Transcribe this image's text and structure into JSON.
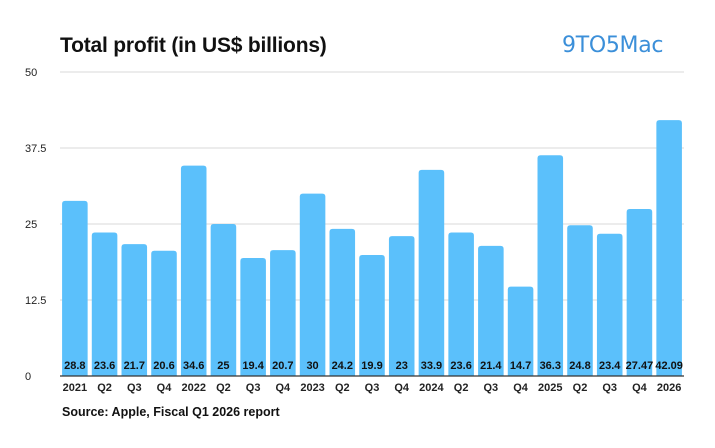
{
  "header": {
    "title": "Total profit (in US$ billions)",
    "logo": "9TO5Mac"
  },
  "footer": {
    "source": "Source: Apple, Fiscal Q1 2026 report"
  },
  "colors": {
    "bar": "#5bc0fb",
    "grid": "#d9d9d9",
    "axis": "#333333",
    "logo": "#3b8fd9"
  },
  "chart_data": {
    "type": "bar",
    "title": "Total profit (in US$ billions)",
    "xlabel": "",
    "ylabel": "",
    "ylim": [
      0,
      50
    ],
    "yticks": [
      0,
      12.5,
      25,
      37.5,
      50
    ],
    "ytick_labels": [
      "0",
      "12.5",
      "25",
      "37.5",
      "50"
    ],
    "grid": true,
    "categories": [
      "2021",
      "Q2",
      "Q3",
      "Q4",
      "2022",
      "Q2",
      "Q3",
      "Q4",
      "2023",
      "Q2",
      "Q3",
      "Q4",
      "2024",
      "Q2",
      "Q3",
      "Q4",
      "2025",
      "Q2",
      "Q3",
      "Q4",
      "2026"
    ],
    "values": [
      28.8,
      23.6,
      21.7,
      20.6,
      34.6,
      25,
      19.4,
      20.7,
      30,
      24.2,
      19.9,
      23,
      33.9,
      23.6,
      21.4,
      14.7,
      36.3,
      24.8,
      23.4,
      27.47,
      42.09
    ],
    "value_labels": [
      "28.8",
      "23.6",
      "21.7",
      "20.6",
      "34.6",
      "25",
      "19.4",
      "20.7",
      "30",
      "24.2",
      "19.9",
      "23",
      "33.9",
      "23.6",
      "21.4",
      "14.7",
      "36.3",
      "24.8",
      "23.4",
      "27.47",
      "42.09"
    ]
  }
}
